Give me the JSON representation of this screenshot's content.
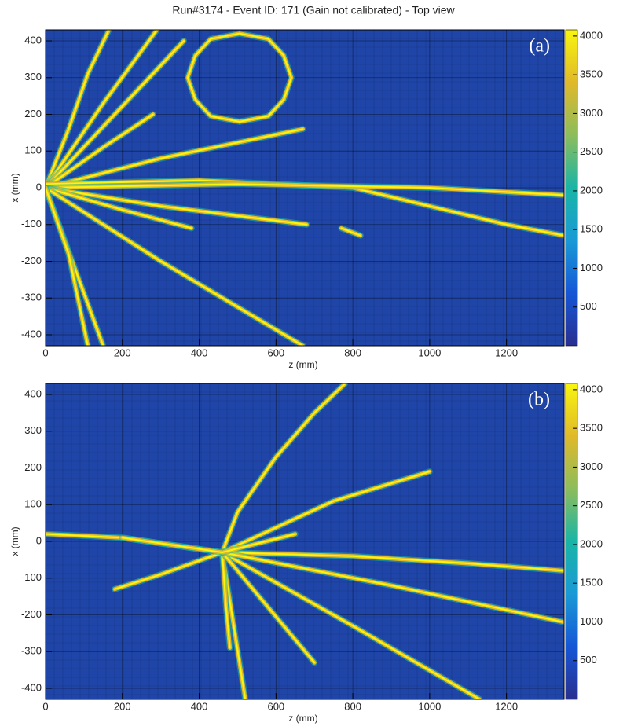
{
  "chart_data": [
    {
      "type": "heatmap",
      "title": "Run#3174 - Event ID: 171 (Gain not calibrated) - Top view",
      "panel_label": "(a)",
      "xlabel": "z (mm)",
      "ylabel": "x (mm)",
      "xlim": [
        0,
        1350
      ],
      "ylim": [
        -430,
        430
      ],
      "xticks": [
        0,
        200,
        400,
        600,
        800,
        1000,
        1200
      ],
      "yticks": [
        -400,
        -300,
        -200,
        -100,
        0,
        100,
        200,
        300,
        400
      ],
      "zlim": [
        0,
        4080
      ],
      "zticks": [
        500,
        1000,
        1500,
        2000,
        2500,
        3000,
        3500,
        4000
      ],
      "colormap": [
        "#2a2f8f",
        "#1556d6",
        "#1a9ad6",
        "#19b5a6",
        "#8cbd5c",
        "#e0b92a",
        "#f9f50f"
      ],
      "background": "#1f45a8",
      "grid": true,
      "tracks": [
        {
          "z": [
            0,
            60,
            110,
            165
          ],
          "x": [
            0,
            160,
            310,
            430
          ]
        },
        {
          "z": [
            0,
            150,
            290
          ],
          "x": [
            0,
            230,
            430
          ]
        },
        {
          "z": [
            0,
            180,
            360
          ],
          "x": [
            0,
            200,
            400
          ]
        },
        {
          "z": [
            0,
            150,
            280
          ],
          "x": [
            0,
            110,
            200
          ]
        },
        {
          "z": [
            0,
            300,
            670
          ],
          "x": [
            0,
            80,
            160
          ]
        },
        {
          "z": [
            0,
            400,
            800,
            1000,
            1200,
            1350
          ],
          "x": [
            10,
            20,
            0,
            -50,
            -100,
            -130
          ]
        },
        {
          "z": [
            0,
            500,
            1000,
            1350
          ],
          "x": [
            0,
            10,
            0,
            -20
          ]
        },
        {
          "z": [
            0,
            300,
            680
          ],
          "x": [
            0,
            -50,
            -100
          ]
        },
        {
          "z": [
            0,
            200,
            380
          ],
          "x": [
            0,
            -60,
            -110
          ]
        },
        {
          "z": [
            0,
            300,
            670
          ],
          "x": [
            0,
            -200,
            -430
          ]
        },
        {
          "z": [
            0,
            80,
            150
          ],
          "x": [
            0,
            -230,
            -430
          ]
        },
        {
          "z": [
            0,
            60,
            110
          ],
          "x": [
            0,
            -180,
            -430
          ]
        },
        {
          "z": [
            370,
            390,
            430,
            505,
            580,
            620,
            640,
            620,
            580,
            505,
            430,
            390,
            370
          ],
          "x": [
            300,
            360,
            405,
            420,
            405,
            360,
            300,
            240,
            195,
            180,
            195,
            240,
            300
          ]
        },
        {
          "z": [
            770,
            820
          ],
          "x": [
            -110,
            -130
          ]
        }
      ]
    },
    {
      "type": "heatmap",
      "panel_label": "(b)",
      "xlabel": "z (mm)",
      "ylabel": "x (mm)",
      "xlim": [
        0,
        1350
      ],
      "ylim": [
        -430,
        430
      ],
      "xticks": [
        0,
        200,
        400,
        600,
        800,
        1000,
        1200
      ],
      "yticks": [
        -400,
        -300,
        -200,
        -100,
        0,
        100,
        200,
        300,
        400
      ],
      "zlim": [
        0,
        4080
      ],
      "zticks": [
        500,
        1000,
        1500,
        2000,
        2500,
        3000,
        3500,
        4000
      ],
      "colormap": [
        "#2a2f8f",
        "#1556d6",
        "#1a9ad6",
        "#19b5a6",
        "#8cbd5c",
        "#e0b92a",
        "#f9f50f"
      ],
      "background": "#1f45a8",
      "grid": true,
      "tracks": [
        {
          "z": [
            0,
            200,
            460
          ],
          "x": [
            20,
            10,
            -30
          ]
        },
        {
          "z": [
            460,
            800,
            1100,
            1350
          ],
          "x": [
            -30,
            -40,
            -60,
            -80
          ]
        },
        {
          "z": [
            460,
            500,
            600,
            700,
            780
          ],
          "x": [
            -30,
            80,
            230,
            350,
            430
          ]
        },
        {
          "z": [
            460,
            800,
            1130
          ],
          "x": [
            -30,
            -230,
            -430
          ]
        },
        {
          "z": [
            460,
            490,
            520
          ],
          "x": [
            -30,
            -230,
            -430
          ]
        },
        {
          "z": [
            460,
            470,
            480
          ],
          "x": [
            -30,
            -180,
            -290
          ]
        },
        {
          "z": [
            460,
            580,
            700
          ],
          "x": [
            -30,
            -180,
            -330
          ]
        },
        {
          "z": [
            460,
            300,
            180
          ],
          "x": [
            -30,
            -90,
            -130
          ]
        },
        {
          "z": [
            460,
            750,
            1000
          ],
          "x": [
            -30,
            110,
            190
          ]
        },
        {
          "z": [
            460,
            900,
            1350
          ],
          "x": [
            -30,
            -120,
            -220
          ]
        },
        {
          "z": [
            200,
            460,
            650
          ],
          "x": [
            10,
            -30,
            20
          ]
        }
      ]
    }
  ]
}
